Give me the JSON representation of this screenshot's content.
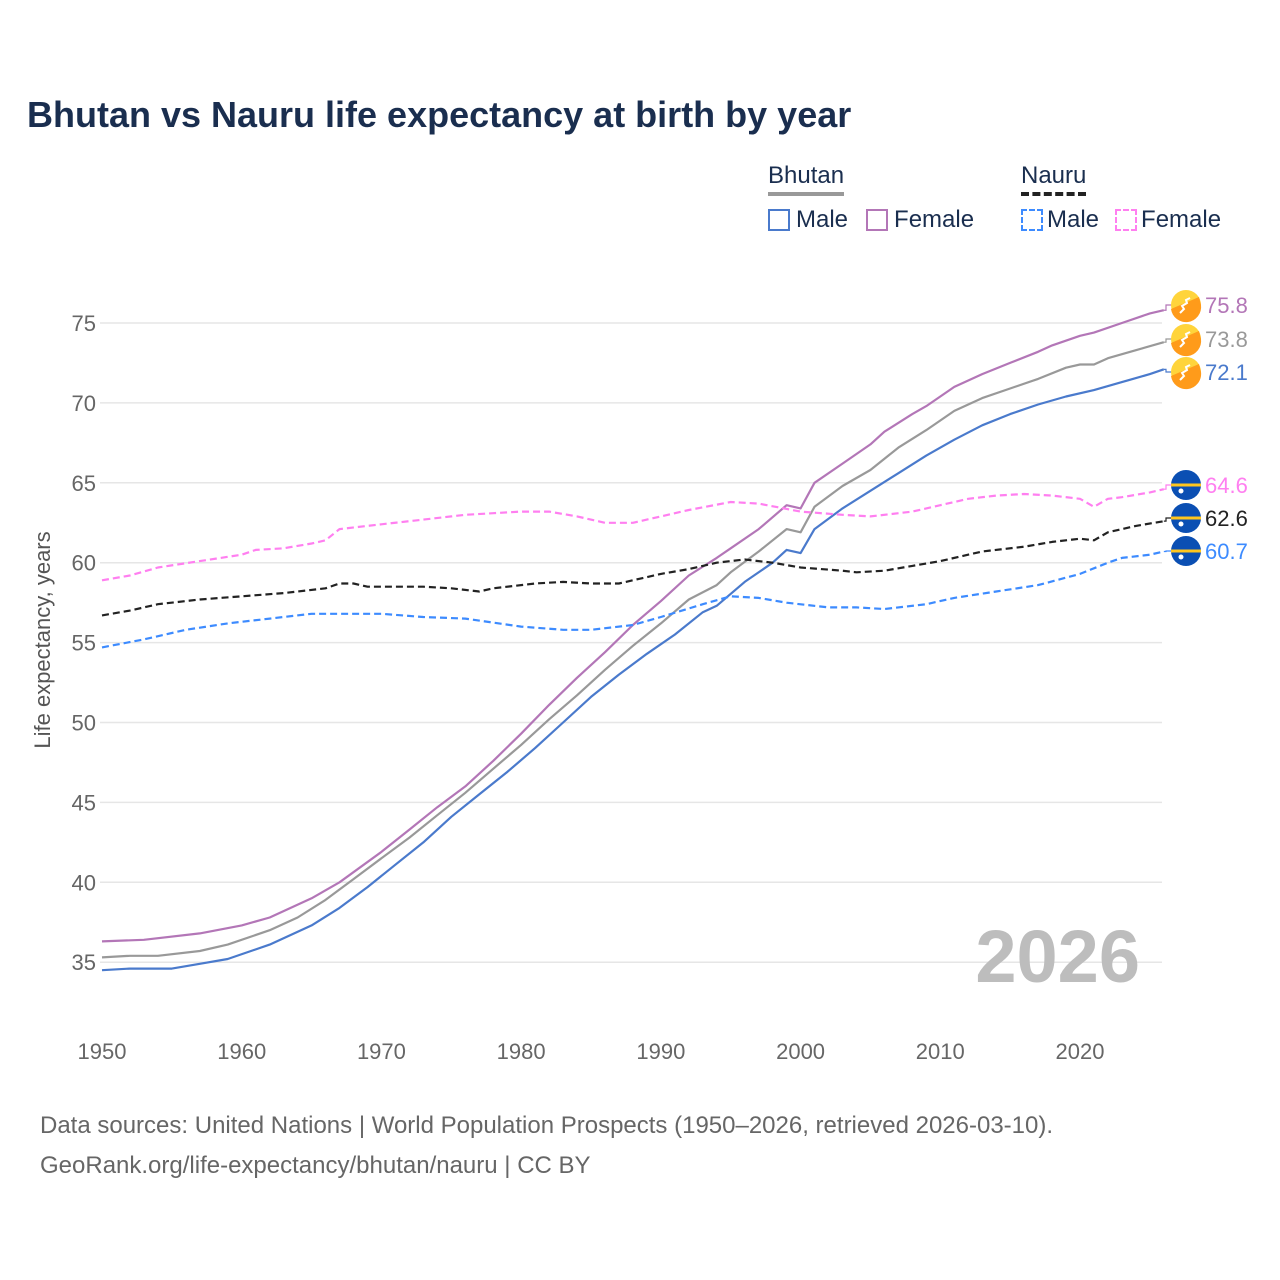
{
  "title": "Bhutan vs Nauru life expectancy at birth by year",
  "legend": {
    "groups": [
      {
        "name": "Bhutan",
        "items": [
          "Male",
          "Female"
        ]
      },
      {
        "name": "Nauru",
        "items": [
          "Male",
          "Female"
        ]
      }
    ]
  },
  "year_watermark": "2026",
  "footer": {
    "line1": "Data sources: United Nations | World Population Prospects (1950–2026, retrieved 2026-03-10).",
    "line2": "GeoRank.org/life-expectancy/bhutan/nauru | CC BY"
  },
  "flags": {
    "bhutan": "bhutan-flag-icon",
    "nauru": "nauru-flag-icon"
  },
  "chart_data": {
    "type": "line",
    "title": "Bhutan vs Nauru life expectancy at birth by year",
    "xlabel": "",
    "ylabel": "Life expectancy, years",
    "xlim": [
      1950,
      2026
    ],
    "ylim": [
      33,
      78
    ],
    "xticks": [
      1950,
      1960,
      1970,
      1980,
      1990,
      2000,
      2010,
      2020
    ],
    "yticks": [
      35,
      40,
      45,
      50,
      55,
      60,
      65,
      70,
      75
    ],
    "grid": true,
    "legend_position": "top-right",
    "series": [
      {
        "name": "Bhutan Female",
        "country": "bhutan",
        "color": "#b376b7",
        "dash": false,
        "end_label": "75.8",
        "points": [
          [
            1950,
            36.3
          ],
          [
            1953,
            36.4
          ],
          [
            1957,
            36.8
          ],
          [
            1960,
            37.3
          ],
          [
            1962,
            37.8
          ],
          [
            1965,
            39.0
          ],
          [
            1967,
            40.0
          ],
          [
            1970,
            41.9
          ],
          [
            1972,
            43.3
          ],
          [
            1974,
            44.7
          ],
          [
            1976,
            46.0
          ],
          [
            1978,
            47.6
          ],
          [
            1980,
            49.3
          ],
          [
            1982,
            51.1
          ],
          [
            1984,
            52.8
          ],
          [
            1986,
            54.4
          ],
          [
            1988,
            56.1
          ],
          [
            1990,
            57.6
          ],
          [
            1992,
            59.2
          ],
          [
            1994,
            60.3
          ],
          [
            1995,
            60.9
          ],
          [
            1997,
            62.1
          ],
          [
            1999,
            63.6
          ],
          [
            2000,
            63.4
          ],
          [
            2001,
            65.0
          ],
          [
            2003,
            66.2
          ],
          [
            2005,
            67.4
          ],
          [
            2006,
            68.2
          ],
          [
            2008,
            69.3
          ],
          [
            2009,
            69.8
          ],
          [
            2011,
            71.0
          ],
          [
            2013,
            71.8
          ],
          [
            2015,
            72.5
          ],
          [
            2017,
            73.2
          ],
          [
            2018,
            73.6
          ],
          [
            2020,
            74.2
          ],
          [
            2021,
            74.4
          ],
          [
            2023,
            75.0
          ],
          [
            2025,
            75.6
          ],
          [
            2026,
            75.8
          ]
        ]
      },
      {
        "name": "Bhutan Total",
        "country": "bhutan",
        "color": "#999999",
        "dash": false,
        "end_label": "73.8",
        "points": [
          [
            1950,
            35.3
          ],
          [
            1952,
            35.4
          ],
          [
            1954,
            35.4
          ],
          [
            1957,
            35.7
          ],
          [
            1959,
            36.1
          ],
          [
            1962,
            37.0
          ],
          [
            1964,
            37.8
          ],
          [
            1966,
            38.9
          ],
          [
            1968,
            40.2
          ],
          [
            1970,
            41.5
          ],
          [
            1972,
            42.8
          ],
          [
            1974,
            44.2
          ],
          [
            1976,
            45.6
          ],
          [
            1978,
            47.1
          ],
          [
            1980,
            48.6
          ],
          [
            1982,
            50.2
          ],
          [
            1984,
            51.7
          ],
          [
            1986,
            53.3
          ],
          [
            1988,
            54.8
          ],
          [
            1990,
            56.2
          ],
          [
            1992,
            57.7
          ],
          [
            1994,
            58.6
          ],
          [
            1995,
            59.4
          ],
          [
            1997,
            60.7
          ],
          [
            1999,
            62.1
          ],
          [
            2000,
            61.9
          ],
          [
            2001,
            63.5
          ],
          [
            2003,
            64.8
          ],
          [
            2005,
            65.8
          ],
          [
            2007,
            67.2
          ],
          [
            2009,
            68.3
          ],
          [
            2011,
            69.5
          ],
          [
            2013,
            70.3
          ],
          [
            2015,
            70.9
          ],
          [
            2017,
            71.5
          ],
          [
            2019,
            72.2
          ],
          [
            2020,
            72.4
          ],
          [
            2021,
            72.4
          ],
          [
            2022,
            72.8
          ],
          [
            2024,
            73.3
          ],
          [
            2026,
            73.8
          ]
        ]
      },
      {
        "name": "Bhutan Male",
        "country": "bhutan",
        "color": "#4a7acc",
        "dash": false,
        "end_label": "72.1",
        "points": [
          [
            1950,
            34.5
          ],
          [
            1952,
            34.6
          ],
          [
            1955,
            34.6
          ],
          [
            1957,
            34.9
          ],
          [
            1959,
            35.2
          ],
          [
            1962,
            36.1
          ],
          [
            1965,
            37.3
          ],
          [
            1967,
            38.4
          ],
          [
            1969,
            39.7
          ],
          [
            1971,
            41.1
          ],
          [
            1973,
            42.5
          ],
          [
            1975,
            44.1
          ],
          [
            1977,
            45.5
          ],
          [
            1979,
            46.9
          ],
          [
            1981,
            48.4
          ],
          [
            1983,
            50.0
          ],
          [
            1985,
            51.6
          ],
          [
            1987,
            53.0
          ],
          [
            1989,
            54.3
          ],
          [
            1991,
            55.5
          ],
          [
            1993,
            56.9
          ],
          [
            1994,
            57.3
          ],
          [
            1996,
            58.8
          ],
          [
            1998,
            60.0
          ],
          [
            1999,
            60.8
          ],
          [
            2000,
            60.6
          ],
          [
            2001,
            62.1
          ],
          [
            2003,
            63.4
          ],
          [
            2005,
            64.5
          ],
          [
            2007,
            65.6
          ],
          [
            2009,
            66.7
          ],
          [
            2011,
            67.7
          ],
          [
            2013,
            68.6
          ],
          [
            2015,
            69.3
          ],
          [
            2017,
            69.9
          ],
          [
            2019,
            70.4
          ],
          [
            2021,
            70.8
          ],
          [
            2023,
            71.3
          ],
          [
            2025,
            71.8
          ],
          [
            2026,
            72.1
          ]
        ]
      },
      {
        "name": "Nauru Female",
        "country": "nauru",
        "color": "#ff7ff0",
        "dash": true,
        "end_label": "64.6",
        "points": [
          [
            1950,
            58.9
          ],
          [
            1952,
            59.2
          ],
          [
            1954,
            59.7
          ],
          [
            1957,
            60.1
          ],
          [
            1960,
            60.5
          ],
          [
            1961,
            60.8
          ],
          [
            1963,
            60.9
          ],
          [
            1965,
            61.2
          ],
          [
            1966,
            61.4
          ],
          [
            1967,
            62.1
          ],
          [
            1970,
            62.4
          ],
          [
            1973,
            62.7
          ],
          [
            1975,
            62.9
          ],
          [
            1976,
            63.0
          ],
          [
            1978,
            63.1
          ],
          [
            1980,
            63.2
          ],
          [
            1982,
            63.2
          ],
          [
            1984,
            62.9
          ],
          [
            1986,
            62.5
          ],
          [
            1988,
            62.5
          ],
          [
            1990,
            62.9
          ],
          [
            1992,
            63.3
          ],
          [
            1995,
            63.8
          ],
          [
            1997,
            63.7
          ],
          [
            2000,
            63.2
          ],
          [
            2003,
            63.0
          ],
          [
            2005,
            62.9
          ],
          [
            2008,
            63.2
          ],
          [
            2010,
            63.6
          ],
          [
            2012,
            64.0
          ],
          [
            2014,
            64.2
          ],
          [
            2016,
            64.3
          ],
          [
            2018,
            64.2
          ],
          [
            2020,
            64.0
          ],
          [
            2021,
            63.5
          ],
          [
            2022,
            64.0
          ],
          [
            2023,
            64.1
          ],
          [
            2025,
            64.4
          ],
          [
            2026,
            64.6
          ]
        ]
      },
      {
        "name": "Nauru Total",
        "country": "nauru",
        "color": "#222222",
        "dash": true,
        "end_label": "62.6",
        "points": [
          [
            1950,
            56.7
          ],
          [
            1952,
            57.0
          ],
          [
            1954,
            57.4
          ],
          [
            1957,
            57.7
          ],
          [
            1960,
            57.9
          ],
          [
            1963,
            58.1
          ],
          [
            1966,
            58.4
          ],
          [
            1967,
            58.7
          ],
          [
            1968,
            58.7
          ],
          [
            1969,
            58.5
          ],
          [
            1973,
            58.5
          ],
          [
            1975,
            58.4
          ],
          [
            1977,
            58.2
          ],
          [
            1978,
            58.4
          ],
          [
            1981,
            58.7
          ],
          [
            1983,
            58.8
          ],
          [
            1985,
            58.7
          ],
          [
            1987,
            58.7
          ],
          [
            1990,
            59.3
          ],
          [
            1992,
            59.6
          ],
          [
            1994,
            60.0
          ],
          [
            1996,
            60.2
          ],
          [
            1998,
            60.0
          ],
          [
            2000,
            59.7
          ],
          [
            2003,
            59.5
          ],
          [
            2004,
            59.4
          ],
          [
            2006,
            59.5
          ],
          [
            2008,
            59.8
          ],
          [
            2010,
            60.1
          ],
          [
            2013,
            60.7
          ],
          [
            2016,
            61.0
          ],
          [
            2018,
            61.3
          ],
          [
            2020,
            61.5
          ],
          [
            2021,
            61.4
          ],
          [
            2022,
            61.9
          ],
          [
            2024,
            62.3
          ],
          [
            2026,
            62.6
          ]
        ]
      },
      {
        "name": "Nauru Male",
        "country": "nauru",
        "color": "#3d8bff",
        "dash": true,
        "end_label": "60.7",
        "points": [
          [
            1950,
            54.7
          ],
          [
            1953,
            55.2
          ],
          [
            1956,
            55.8
          ],
          [
            1959,
            56.2
          ],
          [
            1962,
            56.5
          ],
          [
            1965,
            56.8
          ],
          [
            1970,
            56.8
          ],
          [
            1973,
            56.6
          ],
          [
            1976,
            56.5
          ],
          [
            1980,
            56.0
          ],
          [
            1983,
            55.8
          ],
          [
            1985,
            55.8
          ],
          [
            1988,
            56.1
          ],
          [
            1990,
            56.6
          ],
          [
            1993,
            57.4
          ],
          [
            1995,
            57.9
          ],
          [
            1997,
            57.8
          ],
          [
            1999,
            57.5
          ],
          [
            2002,
            57.2
          ],
          [
            2004,
            57.2
          ],
          [
            2006,
            57.1
          ],
          [
            2009,
            57.4
          ],
          [
            2011,
            57.8
          ],
          [
            2014,
            58.2
          ],
          [
            2017,
            58.6
          ],
          [
            2020,
            59.3
          ],
          [
            2022,
            60.0
          ],
          [
            2023,
            60.3
          ],
          [
            2025,
            60.5
          ],
          [
            2026,
            60.7
          ]
        ]
      }
    ]
  }
}
